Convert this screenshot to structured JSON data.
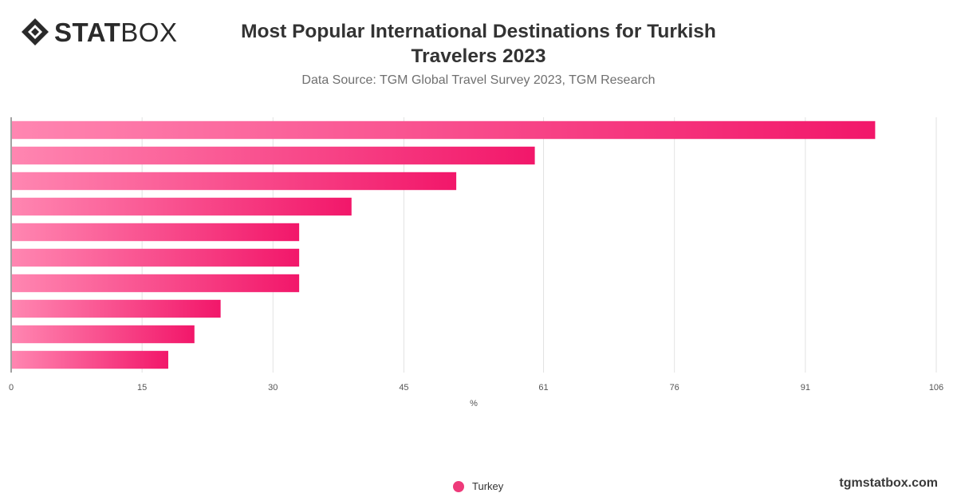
{
  "header": {
    "logo_bold": "STAT",
    "logo_light": "BOX"
  },
  "colors": {
    "bar_start": "#ff86b1",
    "bar_end": "#f2176a",
    "grid": "#e2e2e2",
    "axis": "#444444",
    "tick_text": "#555555"
  },
  "chart_data": {
    "type": "bar",
    "orientation": "horizontal",
    "title": "Most Popular International Destinations for Turkish Travelers 2023",
    "subtitle": "Data Source: TGM Global Travel Survey 2023, TGM Research",
    "xlabel": "%",
    "ylabel": "",
    "xlim": [
      0,
      106
    ],
    "xticks": [
      0,
      15,
      30,
      45,
      61,
      76,
      91,
      106
    ],
    "grid": true,
    "categories": [
      "",
      "",
      "",
      "",
      "",
      "",
      "",
      "",
      "",
      ""
    ],
    "series": [
      {
        "name": "Turkey",
        "values": [
          99,
          60,
          51,
          39,
          33,
          33,
          33,
          24,
          21,
          18
        ]
      }
    ],
    "legend_position": "bottom-center"
  },
  "footer": {
    "credit": "tgmstatbox.com"
  }
}
